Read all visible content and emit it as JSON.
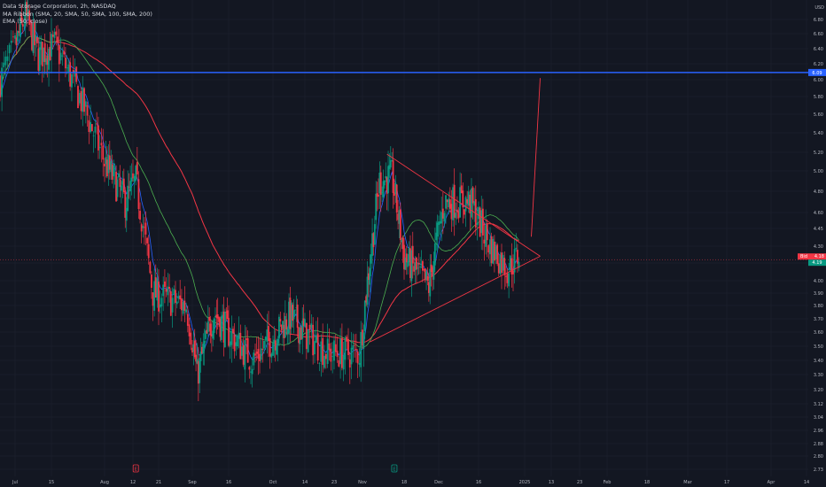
{
  "header": {
    "title": "Data Storage Corporation, 2h, NASDAQ",
    "indicator_1": "MA Ribbon (SMA, 20, SMA, 50, SMA, 100, SMA, 200)",
    "indicator_2": "EMA (50, close)"
  },
  "chart_data": {
    "type": "candlestick",
    "symbol": "DTST",
    "timeframe": "2h",
    "currency_label": "USD",
    "y_axis": {
      "range": [
        2.66,
        7.05
      ],
      "tick_labels": [
        "6.80",
        "6.60",
        "6.40",
        "6.20",
        "6.00",
        "5.80",
        "5.60",
        "5.40",
        "5.20",
        "5.00",
        "4.80",
        "4.60",
        "4.45",
        "4.30",
        "4.15",
        "4.00",
        "3.90",
        "3.80",
        "3.70",
        "3.60",
        "3.50",
        "3.40",
        "3.30",
        "3.20",
        "3.12",
        "3.04",
        "2.96",
        "2.88",
        "2.80",
        "2.73"
      ]
    },
    "x_axis": {
      "tick_labels": [
        "Jul",
        "15",
        "Aug",
        "12",
        "21",
        "Sep",
        "16",
        "Oct",
        "14",
        "23",
        "Nov",
        "18",
        "Dec",
        "16",
        "2025",
        "13",
        "23",
        "Feb",
        "18",
        "Mar",
        "17",
        "Apr",
        "14"
      ]
    },
    "price_path_key_points": [
      {
        "date": "Jun 27",
        "close": 6.0
      },
      {
        "date": "Jul 5",
        "close": 6.85
      },
      {
        "date": "Jul 10",
        "close": 6.3
      },
      {
        "date": "Jul 16",
        "close": 6.45
      },
      {
        "date": "Jul 24",
        "close": 5.8
      },
      {
        "date": "Aug 1",
        "close": 5.1
      },
      {
        "date": "Aug 9",
        "close": 4.7
      },
      {
        "date": "Aug 13",
        "close": 4.9
      },
      {
        "date": "Aug 19",
        "close": 3.9
      },
      {
        "date": "Aug 30",
        "close": 3.8
      },
      {
        "date": "Sep 3",
        "close": 3.3
      },
      {
        "date": "Sep 10",
        "close": 3.75
      },
      {
        "date": "Sep 24",
        "close": 3.4
      },
      {
        "date": "Oct 8",
        "close": 3.72
      },
      {
        "date": "Oct 21",
        "close": 3.45
      },
      {
        "date": "Oct 31",
        "close": 3.45
      },
      {
        "date": "Nov 8",
        "close": 4.9
      },
      {
        "date": "Nov 13",
        "close": 4.95
      },
      {
        "date": "Nov 18",
        "close": 4.2
      },
      {
        "date": "Nov 28",
        "close": 3.95
      },
      {
        "date": "Dec 4",
        "close": 4.7
      },
      {
        "date": "Dec 13",
        "close": 4.7
      },
      {
        "date": "Dec 20",
        "close": 4.3
      },
      {
        "date": "Dec 26",
        "close": 4.1
      },
      {
        "date": "Dec 30",
        "close": 4.22
      }
    ],
    "series": [
      {
        "name": "EMA 50",
        "color": "#2962ff"
      },
      {
        "name": "SMA 100",
        "color": "#4caf50"
      },
      {
        "name": "SMA 200",
        "color": "#f23645"
      }
    ],
    "horizontal_line": {
      "price": 6.09,
      "label": "6.09",
      "color": "#2962ff"
    },
    "triangle_pattern": {
      "color": "#f23645",
      "upper_start": {
        "date": "Nov 11",
        "price": 5.18
      },
      "lower_start": {
        "date": "Nov 4",
        "price": 3.53
      },
      "apex": {
        "date": "Jan 8",
        "price": 4.21
      }
    },
    "projection_line": {
      "color": "#f23645",
      "from": {
        "date": "Jan 4",
        "price": 4.38
      },
      "to": {
        "date": "Jan 8",
        "price": 6.02
      }
    },
    "price_labels": [
      {
        "label": "Bid",
        "value": "4.18",
        "color": "#f23645"
      },
      {
        "value": "4.19",
        "color": "#089981"
      }
    ],
    "event_markers": [
      "E",
      "E"
    ],
    "colors": {
      "up": "#089981",
      "down": "#f23645",
      "background": "#131722",
      "grid": "#1f2430",
      "axis_text": "#b2b5be"
    }
  }
}
